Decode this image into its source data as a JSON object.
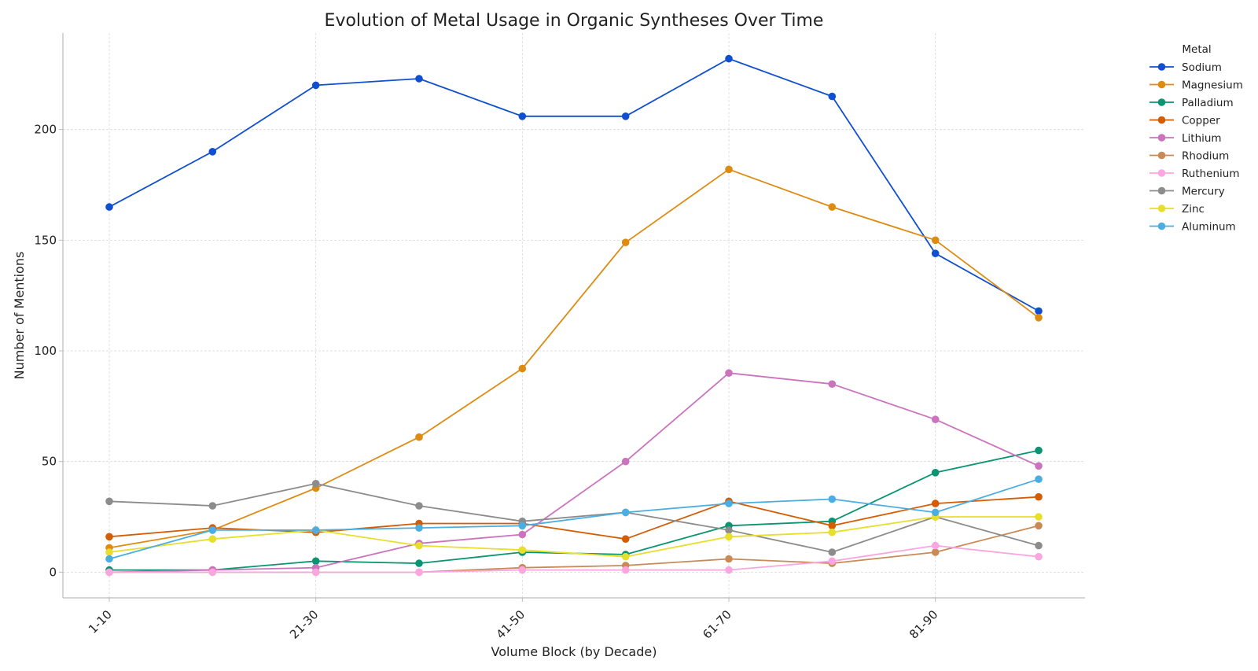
{
  "chart_data": {
    "type": "line",
    "title": "Evolution of Metal Usage in Organic Syntheses Over Time",
    "xlabel": "Volume Block (by Decade)",
    "ylabel": "Number of Mentions",
    "x_tick_labels": [
      "1-10",
      "21-30",
      "41-50",
      "61-70",
      "81-90"
    ],
    "x_tick_indices": [
      0,
      2,
      4,
      6,
      8
    ],
    "num_points": 10,
    "y_ticks": [
      0,
      50,
      100,
      150,
      200
    ],
    "ylim": [
      -11.6,
      243.6
    ],
    "grid": true,
    "legend_title": "Metal",
    "legend_position": "outside top-right",
    "series": [
      {
        "name": "Sodium",
        "color": "#0f4fd0",
        "values": [
          165,
          190,
          220,
          223,
          206,
          206,
          232,
          215,
          144,
          118
        ]
      },
      {
        "name": "Magnesium",
        "color": "#de8b11",
        "values": [
          11,
          19,
          38,
          61,
          92,
          149,
          182,
          165,
          150,
          115
        ]
      },
      {
        "name": "Palladium",
        "color": "#0a9471",
        "values": [
          1,
          1,
          5,
          4,
          9,
          8,
          21,
          23,
          45,
          55
        ]
      },
      {
        "name": "Copper",
        "color": "#d45d03",
        "values": [
          16,
          20,
          18,
          22,
          22,
          15,
          32,
          21,
          31,
          34
        ]
      },
      {
        "name": "Lithium",
        "color": "#cc73be",
        "values": [
          0,
          1,
          2,
          13,
          17,
          50,
          90,
          85,
          69,
          48
        ]
      },
      {
        "name": "Rhodium",
        "color": "#c98a56",
        "values": [
          0,
          0,
          0,
          0,
          2,
          3,
          6,
          4,
          9,
          21
        ]
      },
      {
        "name": "Ruthenium",
        "color": "#fba6e0",
        "values": [
          0,
          0,
          0,
          0,
          1,
          1,
          1,
          5,
          12,
          7
        ]
      },
      {
        "name": "Mercury",
        "color": "#8c8c8c",
        "values": [
          32,
          30,
          40,
          30,
          23,
          27,
          19,
          9,
          25,
          12
        ]
      },
      {
        "name": "Zinc",
        "color": "#e8de2c",
        "values": [
          9,
          15,
          19,
          12,
          10,
          7,
          16,
          18,
          25,
          25
        ]
      },
      {
        "name": "Aluminum",
        "color": "#4aaee3",
        "values": [
          6,
          19,
          19,
          20,
          21,
          27,
          31,
          33,
          27,
          42
        ]
      }
    ]
  }
}
